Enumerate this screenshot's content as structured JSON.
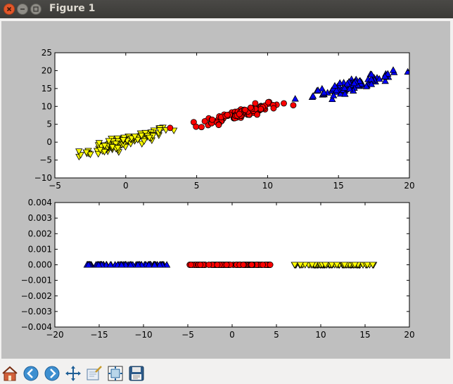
{
  "window": {
    "title": "Figure 1",
    "buttons": [
      "close",
      "minimize",
      "maximize"
    ]
  },
  "toolbar": {
    "buttons": [
      {
        "name": "home-button",
        "icon": "home-icon"
      },
      {
        "name": "back-button",
        "icon": "arrow-left-icon"
      },
      {
        "name": "forward-button",
        "icon": "arrow-right-icon"
      },
      {
        "name": "pan-button",
        "icon": "move-icon"
      },
      {
        "name": "zoom-button",
        "icon": "zoom-rect-icon"
      },
      {
        "name": "subplots-button",
        "icon": "configure-subplots-icon"
      },
      {
        "name": "save-button",
        "icon": "floppy-disk-icon"
      }
    ]
  },
  "chart_data": [
    {
      "type": "scatter",
      "xlim": [
        -5,
        20
      ],
      "ylim": [
        -10,
        25
      ],
      "xticks": [
        "−5",
        "0",
        "5",
        "10",
        "15",
        "20"
      ],
      "yticks": [
        "−10",
        "−5",
        "0",
        "5",
        "10",
        "15",
        "20",
        "25"
      ],
      "series": [
        {
          "marker": "triangle-down",
          "color": "#ffff00",
          "center": [
            0,
            0
          ],
          "spread": [
            1.6,
            1.7
          ],
          "slope": 1.1,
          "count": 100
        },
        {
          "marker": "circle",
          "color": "#ff0000",
          "center": [
            8,
            8
          ],
          "spread": [
            1.4,
            1.5
          ],
          "slope": 1.0,
          "count": 100
        },
        {
          "marker": "triangle-up",
          "color": "#0000ff",
          "center": [
            16,
            16
          ],
          "spread": [
            1.4,
            1.5
          ],
          "slope": 1.0,
          "count": 100
        }
      ]
    },
    {
      "type": "scatter",
      "xlim": [
        -20,
        20
      ],
      "ylim": [
        -0.004,
        0.004
      ],
      "xticks": [
        "−20",
        "−15",
        "−10",
        "−5",
        "0",
        "5",
        "10",
        "15",
        "20"
      ],
      "yticks": [
        "−0.004",
        "−0.003",
        "−0.002",
        "−0.001",
        "0.000",
        "0.001",
        "0.002",
        "0.003",
        "0.004"
      ],
      "series": [
        {
          "marker": "triangle-up",
          "color": "#0000ff",
          "xrange": [
            -16.5,
            -7.2
          ],
          "y": 0,
          "count": 100
        },
        {
          "marker": "circle",
          "color": "#ff0000",
          "xrange": [
            -4.8,
            4.3
          ],
          "y": 0,
          "count": 100
        },
        {
          "marker": "triangle-down",
          "color": "#ffff00",
          "xrange": [
            7,
            16
          ],
          "y": 0,
          "count": 100
        }
      ]
    }
  ]
}
